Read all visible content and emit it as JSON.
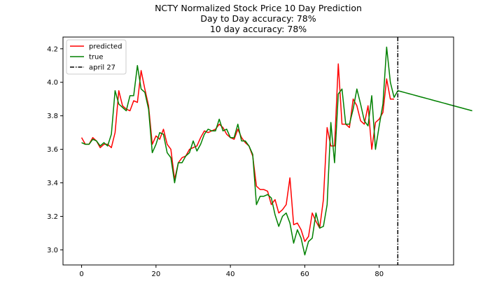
{
  "chart_data": {
    "type": "line",
    "title_lines": [
      "NCTY Normalized Stock Price 10 Day Prediction",
      "Day to Day accuracy: 78%",
      "10 day accuracy: 78%"
    ],
    "xlim": [
      -5,
      100
    ],
    "ylim": [
      2.91,
      4.27
    ],
    "x_ticks": [
      0,
      20,
      40,
      60,
      80
    ],
    "y_ticks": [
      3.0,
      3.2,
      3.4,
      3.6,
      3.8,
      4.0,
      4.2
    ],
    "grid": false,
    "legend_placement": "top-left",
    "series": [
      {
        "name": "predicted",
        "color": "#ff0000",
        "values": [
          3.67,
          3.63,
          3.63,
          3.67,
          3.65,
          3.61,
          3.63,
          3.63,
          3.61,
          3.7,
          3.95,
          3.86,
          3.84,
          3.83,
          3.89,
          3.88,
          4.07,
          3.96,
          3.86,
          3.63,
          3.68,
          3.66,
          3.72,
          3.63,
          3.6,
          3.42,
          3.52,
          3.55,
          3.56,
          3.6,
          3.61,
          3.62,
          3.67,
          3.71,
          3.7,
          3.71,
          3.72,
          3.75,
          3.73,
          3.69,
          3.67,
          3.66,
          3.72,
          3.67,
          3.64,
          3.62,
          3.56,
          3.38,
          3.36,
          3.36,
          3.35,
          3.27,
          3.3,
          3.22,
          3.24,
          3.27,
          3.43,
          3.15,
          3.16,
          3.12,
          3.05,
          3.08,
          3.22,
          3.17,
          3.13,
          3.3,
          3.73,
          3.62,
          3.62,
          4.11,
          3.75,
          3.75,
          3.73,
          3.9,
          3.86,
          3.77,
          3.75,
          3.86,
          3.6,
          3.76,
          3.78,
          3.82,
          4.02,
          3.9,
          3.9
        ]
      },
      {
        "name": "true",
        "color": "#008000",
        "values": [
          3.64,
          3.63,
          3.63,
          3.66,
          3.65,
          3.62,
          3.64,
          3.62,
          3.69,
          3.95,
          3.87,
          3.85,
          3.83,
          3.92,
          3.92,
          4.1,
          3.96,
          3.94,
          3.84,
          3.58,
          3.63,
          3.7,
          3.69,
          3.58,
          3.55,
          3.4,
          3.52,
          3.52,
          3.56,
          3.58,
          3.65,
          3.59,
          3.63,
          3.69,
          3.72,
          3.71,
          3.71,
          3.78,
          3.71,
          3.72,
          3.67,
          3.67,
          3.75,
          3.65,
          3.65,
          3.62,
          3.57,
          3.27,
          3.32,
          3.32,
          3.33,
          3.31,
          3.21,
          3.14,
          3.2,
          3.22,
          3.16,
          3.04,
          3.12,
          3.07,
          2.97,
          3.05,
          3.07,
          3.22,
          3.13,
          3.14,
          3.27,
          3.76,
          3.52,
          3.93,
          3.96,
          3.75,
          3.75,
          3.84,
          3.96,
          3.87,
          3.77,
          3.74,
          3.92,
          3.6,
          3.74,
          3.87,
          4.21,
          4.0,
          3.91,
          3.95,
          3.944,
          3.938,
          3.932,
          3.926,
          3.92,
          3.914,
          3.908,
          3.902,
          3.896,
          3.89,
          3.884,
          3.878,
          3.872,
          3.866,
          3.86,
          3.854,
          3.848,
          3.842,
          3.836,
          3.83
        ]
      }
    ],
    "vline": {
      "name": "april 27",
      "x": 85,
      "color": "#000000",
      "style": "dash-dot"
    }
  }
}
